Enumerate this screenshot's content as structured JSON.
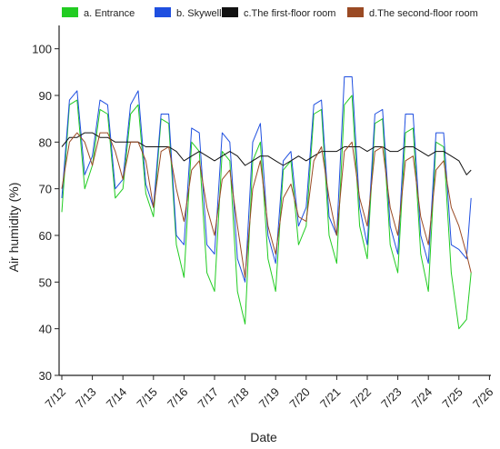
{
  "chart_data": {
    "type": "line",
    "title": "",
    "xlabel": "Date",
    "ylabel": "Air humidity (%)",
    "xlim": [
      "7/12",
      "7/26"
    ],
    "ylim": [
      30,
      105
    ],
    "x_ticks": [
      "7/12",
      "7/13",
      "7/14",
      "7/15",
      "7/16",
      "7/17",
      "7/18",
      "7/19",
      "7/20",
      "7/21",
      "7/22",
      "7/23",
      "7/24",
      "7/25",
      "7/26"
    ],
    "y_ticks": [
      30,
      40,
      50,
      60,
      70,
      80,
      90,
      100
    ],
    "grid": false,
    "legend": "top",
    "x_days": [
      12,
      12.25,
      12.5,
      12.75,
      13,
      13.25,
      13.5,
      13.75,
      14,
      14.25,
      14.5,
      14.75,
      15,
      15.25,
      15.5,
      15.75,
      16,
      16.25,
      16.5,
      16.75,
      17,
      17.25,
      17.5,
      17.75,
      18,
      18.25,
      18.5,
      18.75,
      19,
      19.25,
      19.5,
      19.75,
      20,
      20.25,
      20.5,
      20.75,
      21,
      21.25,
      21.5,
      21.75,
      22,
      22.25,
      22.5,
      22.75,
      23,
      23.25,
      23.5,
      23.75,
      24,
      24.25,
      24.5,
      24.75,
      25,
      25.25,
      25.4
    ],
    "series": [
      {
        "name": "a. Entrance",
        "color": "#22cc22",
        "values": [
          65,
          88,
          89,
          70,
          75,
          87,
          86,
          68,
          70,
          86,
          88,
          69,
          64,
          85,
          84,
          58,
          51,
          80,
          78,
          52,
          48,
          78,
          76,
          48,
          41,
          76,
          80,
          55,
          48,
          74,
          76,
          58,
          62,
          86,
          87,
          60,
          54,
          88,
          90,
          62,
          55,
          84,
          85,
          58,
          52,
          82,
          83,
          56,
          48,
          80,
          79,
          52,
          40,
          42,
          52
        ]
      },
      {
        "name": "b. Skywell",
        "color": "#1f4fe0",
        "values": [
          68,
          89,
          91,
          73,
          77,
          89,
          88,
          70,
          72,
          88,
          91,
          71,
          66,
          86,
          86,
          60,
          58,
          83,
          82,
          58,
          56,
          82,
          80,
          55,
          50,
          80,
          84,
          60,
          54,
          76,
          78,
          62,
          66,
          88,
          89,
          64,
          60,
          94,
          94,
          66,
          58,
          86,
          87,
          62,
          56,
          86,
          86,
          60,
          54,
          82,
          82,
          58,
          57,
          55,
          68
        ]
      },
      {
        "name": "c.The first-floor room",
        "color": "#111111",
        "values": [
          79,
          81,
          81,
          82,
          82,
          81,
          81,
          80,
          80,
          80,
          80,
          79,
          79,
          79,
          79,
          78,
          76,
          77,
          78,
          77,
          76,
          77,
          78,
          77,
          75,
          76,
          77,
          77,
          76,
          75,
          76,
          77,
          76,
          77,
          78,
          78,
          78,
          79,
          79,
          79,
          78,
          79,
          79,
          78,
          78,
          79,
          79,
          78,
          77,
          78,
          78,
          77,
          76,
          73,
          74
        ]
      },
      {
        "name": "d.The second-floor room",
        "color": "#9a4a24",
        "values": [
          70,
          80,
          82,
          80,
          75,
          82,
          82,
          78,
          72,
          80,
          80,
          76,
          66,
          78,
          79,
          70,
          63,
          74,
          76,
          66,
          60,
          72,
          74,
          62,
          51,
          70,
          76,
          62,
          56,
          68,
          71,
          64,
          63,
          76,
          79,
          68,
          60,
          78,
          80,
          68,
          62,
          78,
          79,
          66,
          60,
          76,
          77,
          64,
          58,
          74,
          76,
          66,
          62,
          56,
          52
        ]
      }
    ]
  }
}
